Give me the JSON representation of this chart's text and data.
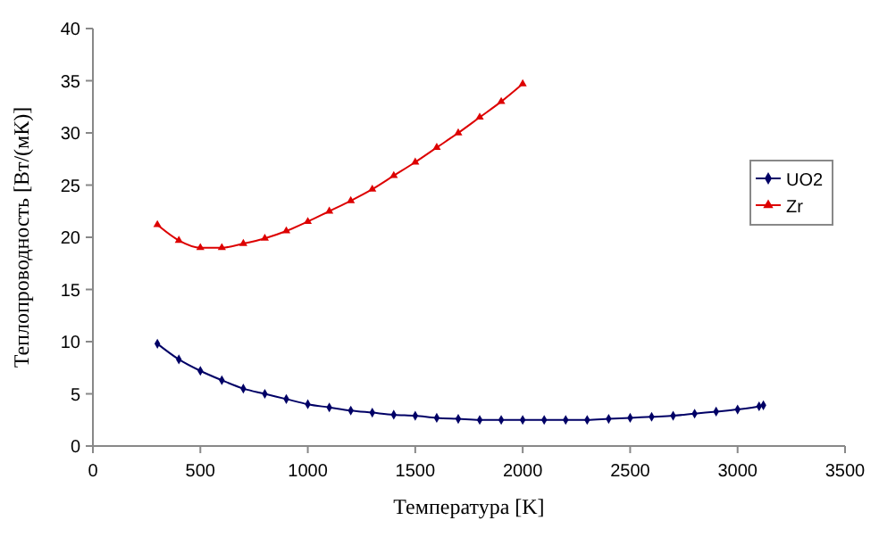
{
  "chart_data": {
    "type": "line",
    "xlabel": "Температура [K]",
    "ylabel": "Теплопроводность [Вт/(мК)]",
    "xlim": [
      0,
      3500
    ],
    "xticks": [
      0,
      500,
      1000,
      1500,
      2000,
      2500,
      3000,
      3500
    ],
    "ylim": [
      0,
      40
    ],
    "yticks": [
      0,
      5,
      10,
      15,
      20,
      25,
      30,
      35,
      40
    ],
    "grid": false,
    "legend": "right",
    "series": [
      {
        "name": "UO2",
        "color": "#000066",
        "marker": "diamond",
        "x": [
          300,
          400,
          500,
          600,
          700,
          800,
          900,
          1000,
          1100,
          1200,
          1300,
          1400,
          1500,
          1600,
          1700,
          1800,
          1900,
          2000,
          2100,
          2200,
          2300,
          2400,
          2500,
          2600,
          2700,
          2800,
          2900,
          3000,
          3100,
          3120
        ],
        "values": [
          9.8,
          8.3,
          7.2,
          6.3,
          5.5,
          5.0,
          4.5,
          4.0,
          3.7,
          3.4,
          3.2,
          3.0,
          2.9,
          2.7,
          2.6,
          2.5,
          2.5,
          2.5,
          2.5,
          2.5,
          2.5,
          2.6,
          2.7,
          2.8,
          2.9,
          3.1,
          3.3,
          3.5,
          3.8,
          3.9
        ]
      },
      {
        "name": "Zr",
        "color": "#dd0000",
        "marker": "triangle",
        "x": [
          300,
          400,
          500,
          600,
          700,
          800,
          900,
          1000,
          1100,
          1200,
          1300,
          1400,
          1500,
          1600,
          1700,
          1800,
          1900,
          2000
        ],
        "values": [
          21.2,
          19.7,
          19.0,
          19.0,
          19.4,
          19.9,
          20.6,
          21.5,
          22.5,
          23.5,
          24.6,
          25.9,
          27.2,
          28.6,
          30.0,
          31.5,
          33.0,
          34.7
        ]
      }
    ]
  }
}
